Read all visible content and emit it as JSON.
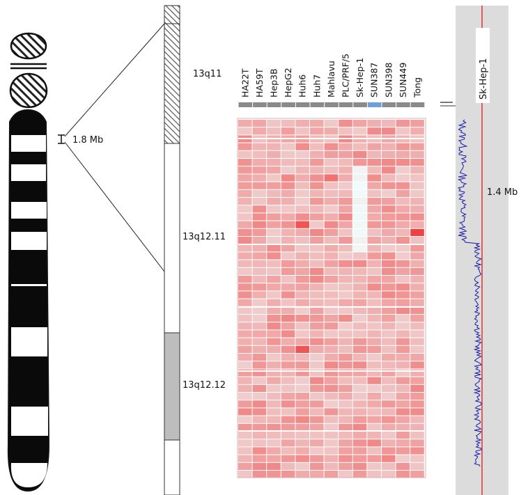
{
  "chromosome_ideogram": {
    "region_size_label": "1.8 Mb"
  },
  "zoom_bands": [
    {
      "label": "13q11",
      "fill": "hatched"
    },
    {
      "label": "13q12.11",
      "fill": "white"
    },
    {
      "label": "13q12.12",
      "fill": "gray"
    }
  ],
  "heatmap": {
    "cell_lines": [
      "HA22T",
      "HA59T",
      "Hep3B",
      "HepG2",
      "Huh6",
      "Huh7",
      "Mahlavu",
      "PLC/PRF/5",
      "Sk-Hep-1",
      "SUN387",
      "SUN398",
      "SUN449",
      "Tong"
    ],
    "selected_column": "SUN387",
    "color_low": "#ffffff",
    "color_high": "#e41e1e",
    "header_color": "#8a8a8a",
    "selected_header_color": "#6f9ed8"
  },
  "copy_number_track": {
    "sample": "Sk-Hep-1",
    "size_label": "1.4 Mb",
    "line_color": "#1a1aa8",
    "center_line_color": "#e03030",
    "background": "#dcdcdc"
  }
}
